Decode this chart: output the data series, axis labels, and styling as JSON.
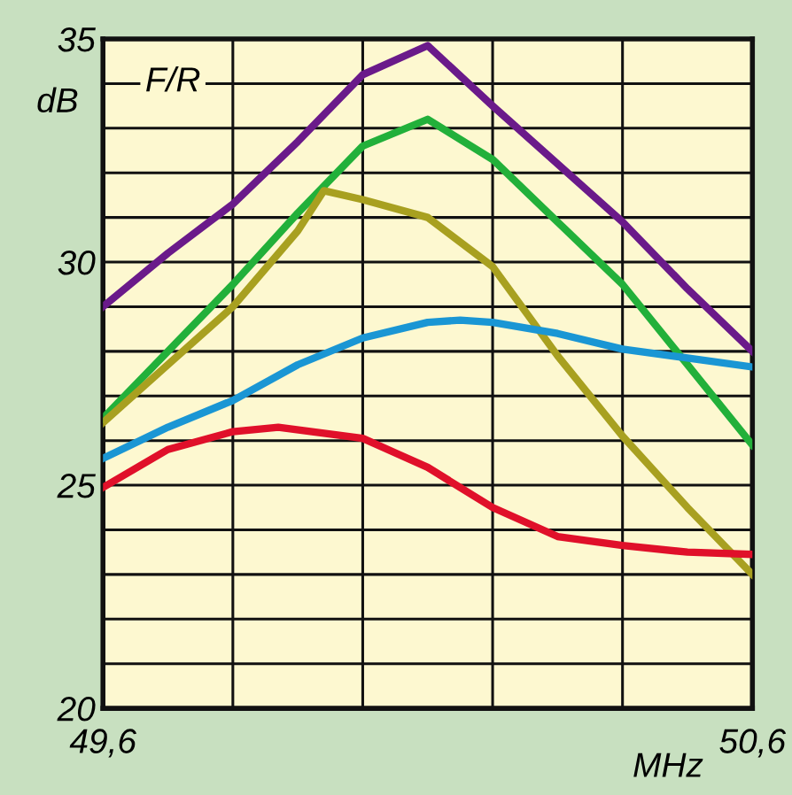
{
  "chart_data": {
    "type": "line",
    "xlabel": "MHz",
    "ylabel": "dB",
    "annotations": [
      "F/R"
    ],
    "xlim": [
      49.6,
      50.6
    ],
    "ylim": [
      20,
      35
    ],
    "xticks": [
      {
        "value": 49.6,
        "label": "49,6"
      },
      {
        "value": 49.8,
        "label": null
      },
      {
        "value": 50.0,
        "label": null
      },
      {
        "value": 50.2,
        "label": null
      },
      {
        "value": 50.4,
        "label": null
      },
      {
        "value": 50.6,
        "label": "50,6"
      }
    ],
    "yticks": [
      20,
      {
        "value": 21,
        "label": null
      },
      {
        "value": 22,
        "label": null
      },
      {
        "value": 23,
        "label": null
      },
      {
        "value": 24,
        "label": null
      },
      25,
      {
        "value": 26,
        "label": null
      },
      {
        "value": 27,
        "label": null
      },
      {
        "value": 28,
        "label": null
      },
      {
        "value": 29,
        "label": null
      },
      30,
      {
        "value": 31,
        "label": null
      },
      {
        "value": 32,
        "label": null
      },
      {
        "value": 33,
        "label": null
      },
      {
        "value": 34,
        "label": null
      },
      35
    ],
    "grid": true,
    "line_style": "solid",
    "marker": "none",
    "series": [
      {
        "color": "#6a1a8a",
        "x": [
          49.6,
          49.7,
          49.8,
          49.9,
          50.0,
          50.1,
          50.2,
          50.3,
          50.4,
          50.5,
          50.6
        ],
        "values": [
          29.0,
          30.2,
          31.3,
          32.7,
          34.2,
          34.85,
          33.5,
          32.2,
          30.9,
          29.4,
          28.0
        ]
      },
      {
        "color": "#22b03a",
        "x": [
          49.6,
          49.7,
          49.8,
          49.9,
          50.0,
          50.1,
          50.2,
          50.3,
          50.4,
          50.5,
          50.6
        ],
        "values": [
          26.5,
          28.0,
          29.5,
          31.1,
          32.6,
          33.2,
          32.3,
          30.9,
          29.5,
          27.7,
          25.9
        ]
      },
      {
        "color": "#a8a020",
        "x": [
          49.6,
          49.7,
          49.8,
          49.9,
          49.94,
          50.0,
          50.1,
          50.2,
          50.3,
          50.4,
          50.5,
          50.6
        ],
        "values": [
          26.4,
          27.7,
          29.0,
          30.7,
          31.6,
          31.4,
          31.0,
          29.9,
          27.9,
          26.1,
          24.5,
          23.0
        ]
      },
      {
        "color": "#1a96d4",
        "x": [
          49.6,
          49.7,
          49.8,
          49.9,
          50.0,
          50.1,
          50.15,
          50.2,
          50.3,
          50.4,
          50.5,
          50.6
        ],
        "values": [
          25.6,
          26.3,
          26.9,
          27.7,
          28.3,
          28.65,
          28.7,
          28.65,
          28.4,
          28.05,
          27.85,
          27.65
        ]
      },
      {
        "color": "#e0102a",
        "x": [
          49.6,
          49.7,
          49.8,
          49.87,
          50.0,
          50.1,
          50.2,
          50.3,
          50.4,
          50.5,
          50.6
        ],
        "values": [
          24.95,
          25.8,
          26.2,
          26.3,
          26.05,
          25.4,
          24.5,
          23.85,
          23.65,
          23.5,
          23.45
        ]
      }
    ]
  }
}
